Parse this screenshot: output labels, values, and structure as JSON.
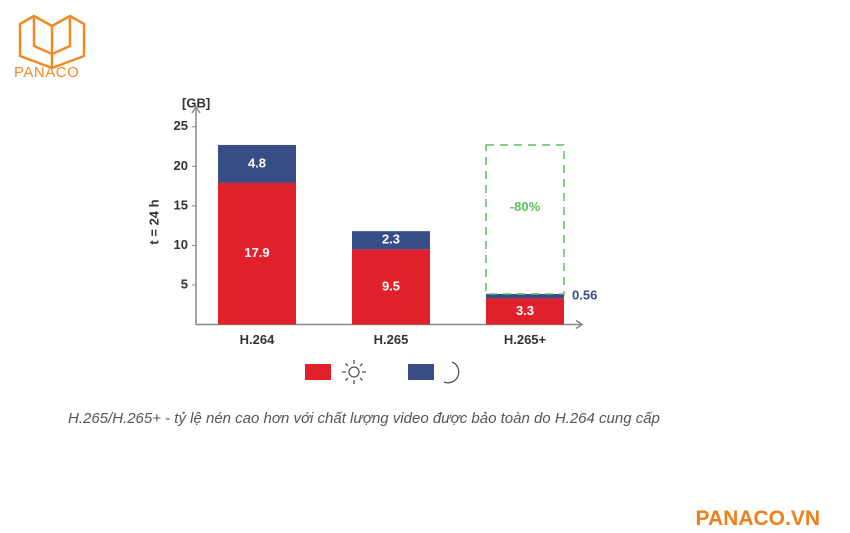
{
  "logo": "PANACO",
  "chart_data": {
    "type": "bar",
    "stacked": true,
    "y_label": "t = 24 h",
    "y_unit": "[GB]",
    "categories": [
      "H.264",
      "H.265",
      "H.265+"
    ],
    "series": [
      {
        "color": "#e0202a",
        "values": [
          17.9,
          9.5,
          3.3
        ]
      },
      {
        "color": "#384c86",
        "values": [
          4.8,
          2.3,
          0.56
        ]
      }
    ],
    "annotation": "-80%",
    "annotation_color": "#5cc05c",
    "ylim": [
      0,
      27.5
    ],
    "yticks": [
      5,
      10,
      15,
      20,
      25
    ]
  },
  "caption": "H.265/H.265+ - tỷ lệ nén cao hơn với chất lượng video được bảo toàn do H.264 cung cấp",
  "footer": "PANACO.VN"
}
